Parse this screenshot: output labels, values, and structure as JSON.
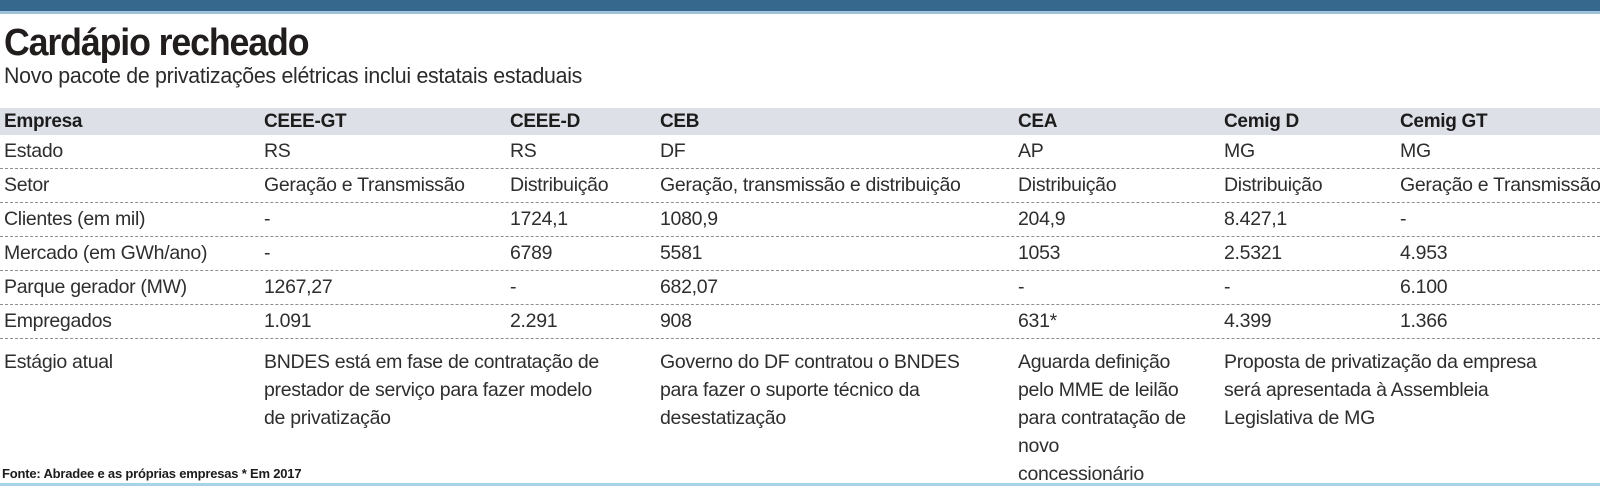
{
  "page": {
    "title": "Cardápio recheado",
    "subtitle": "Novo pacote de privatizações elétricas inclui estatais estaduais",
    "source_note": "Fonte: Abradee e as próprias empresas * Em 2017"
  },
  "colors": {
    "top_bar": "#35688c",
    "top_bar_strip": "#9fc2d8",
    "header_row_bg": "#dde1e7",
    "bottom_line": "#a8d2e8",
    "title_text": "#221d1d",
    "body_text": "#2e2e2e",
    "dashed_divider": "#8f8f8f"
  },
  "chart_data": {
    "type": "table",
    "title": "Cardápio recheado",
    "subtitle": "Novo pacote de privatizações elétricas inclui estatais estaduais",
    "source": "Fonte: Abradee e as próprias empresas * Em 2017",
    "columns": [
      "Empresa",
      "CEEE-GT",
      "CEEE-D",
      "CEB",
      "CEA",
      "Cemig D",
      "Cemig GT"
    ],
    "rows": [
      {
        "label": "Estado",
        "values": [
          "RS",
          "RS",
          "DF",
          "AP",
          "MG",
          "MG"
        ]
      },
      {
        "label": "Setor",
        "values": [
          "Geração e Transmissão",
          "Distribuição",
          "Geração, transmissão e distribuição",
          "Distribuição",
          "Distribuição",
          "Geração e Transmissão"
        ]
      },
      {
        "label": "Clientes (em mil)",
        "values": [
          "-",
          "1724,1",
          "1080,9",
          "204,9",
          "8.427,1",
          "-"
        ]
      },
      {
        "label": "Mercado (em GWh/ano)",
        "values": [
          "-",
          "6789",
          "5581",
          "1053",
          "2.5321",
          "4.953"
        ]
      },
      {
        "label": "Parque gerador (MW)",
        "values": [
          "1267,27",
          "-",
          "682,07",
          "-",
          "-",
          "6.100"
        ]
      },
      {
        "label": "Empregados",
        "values": [
          "1.091",
          "2.291",
          "908",
          "631*",
          "4.399",
          "1.366"
        ]
      }
    ],
    "stage_row": {
      "label": "Estágio atual",
      "cells": [
        {
          "company": "CEEE-GT / CEEE-D",
          "span": 2,
          "text": "BNDES está em fase de contratação de prestador de serviço para fazer modelo de privatização"
        },
        {
          "company": "CEB",
          "span": 1,
          "text": "Governo do DF contratou o BNDES para fazer o suporte técnico da desestatização"
        },
        {
          "company": "CEA",
          "span": 1,
          "text": "Aguarda definição pelo MME de leilão para contratação de novo concessionário"
        },
        {
          "company": "Cemig D / Cemig GT",
          "span": 2,
          "text": "Proposta de privatização da empresa será apresentada à Assembleia Legislativa de MG"
        }
      ]
    }
  }
}
